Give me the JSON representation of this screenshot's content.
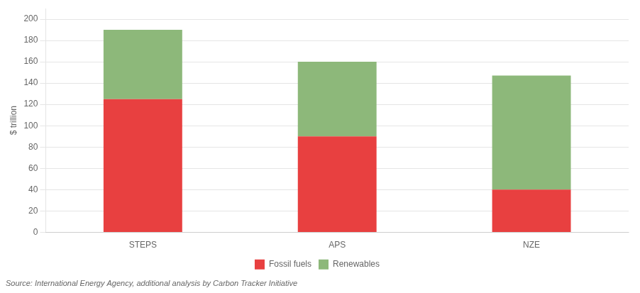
{
  "chart_data": {
    "type": "bar",
    "stacked": true,
    "categories": [
      "STEPS",
      "APS",
      "NZE"
    ],
    "series": [
      {
        "name": "Fossil fuels",
        "color": "#e84040",
        "values": [
          125,
          90,
          40
        ]
      },
      {
        "name": "Renewables",
        "color": "#8db87a",
        "values": [
          65,
          70,
          107
        ]
      }
    ],
    "ylabel": "$ trillion",
    "ylim": [
      0,
      210
    ],
    "yticks": [
      0,
      20,
      40,
      60,
      80,
      100,
      120,
      140,
      160,
      180,
      200
    ],
    "grid": true,
    "legend": "bottom",
    "source": "Source: International Energy Agency, additional analysis by Carbon Tracker Initiative"
  }
}
